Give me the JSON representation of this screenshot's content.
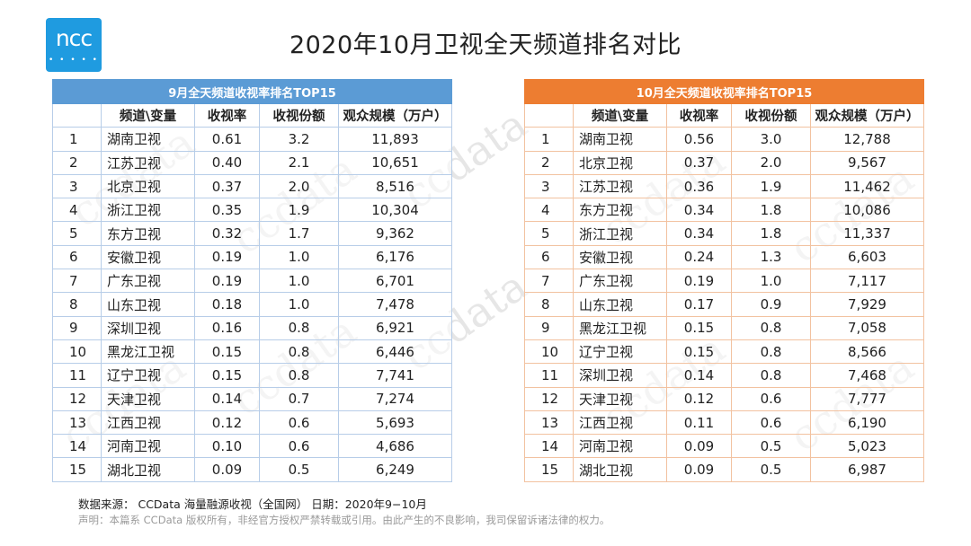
{
  "logo": {
    "text": "ncc",
    "dots": "• • • • •"
  },
  "title": "2020年10月卫视全天频道排名对比",
  "watermark": "ccdata",
  "colors": {
    "left_header": "#5b9bd5",
    "right_header": "#ed7d31",
    "logo": "#1f9be0"
  },
  "columns": [
    "频道\\变量",
    "收视率",
    "收视份额",
    "观众规模（万户）"
  ],
  "left_table": {
    "caption": "9月全天频道收视率排名TOP15",
    "rows": [
      {
        "rank": "1",
        "channel": "湖南卫视",
        "rating": "0.61",
        "share": "3.2",
        "audience": "11,893"
      },
      {
        "rank": "2",
        "channel": "江苏卫视",
        "rating": "0.40",
        "share": "2.1",
        "audience": "10,651"
      },
      {
        "rank": "3",
        "channel": "北京卫视",
        "rating": "0.37",
        "share": "2.0",
        "audience": "8,516"
      },
      {
        "rank": "4",
        "channel": "浙江卫视",
        "rating": "0.35",
        "share": "1.9",
        "audience": "10,304"
      },
      {
        "rank": "5",
        "channel": "东方卫视",
        "rating": "0.32",
        "share": "1.7",
        "audience": "9,362"
      },
      {
        "rank": "6",
        "channel": "安徽卫视",
        "rating": "0.19",
        "share": "1.0",
        "audience": "6,176"
      },
      {
        "rank": "7",
        "channel": "广东卫视",
        "rating": "0.19",
        "share": "1.0",
        "audience": "6,701"
      },
      {
        "rank": "8",
        "channel": "山东卫视",
        "rating": "0.18",
        "share": "1.0",
        "audience": "7,478"
      },
      {
        "rank": "9",
        "channel": "深圳卫视",
        "rating": "0.16",
        "share": "0.8",
        "audience": "6,921"
      },
      {
        "rank": "10",
        "channel": "黑龙江卫视",
        "rating": "0.15",
        "share": "0.8",
        "audience": "6,446"
      },
      {
        "rank": "11",
        "channel": "辽宁卫视",
        "rating": "0.15",
        "share": "0.8",
        "audience": "7,741"
      },
      {
        "rank": "12",
        "channel": "天津卫视",
        "rating": "0.14",
        "share": "0.7",
        "audience": "7,274"
      },
      {
        "rank": "13",
        "channel": "江西卫视",
        "rating": "0.12",
        "share": "0.6",
        "audience": "5,693"
      },
      {
        "rank": "14",
        "channel": "河南卫视",
        "rating": "0.10",
        "share": "0.6",
        "audience": "4,686"
      },
      {
        "rank": "15",
        "channel": "湖北卫视",
        "rating": "0.09",
        "share": "0.5",
        "audience": "6,249"
      }
    ]
  },
  "right_table": {
    "caption": "10月全天频道收视率排名TOP15",
    "rows": [
      {
        "rank": "1",
        "channel": "湖南卫视",
        "rating": "0.56",
        "share": "3.0",
        "audience": "12,788"
      },
      {
        "rank": "2",
        "channel": "北京卫视",
        "rating": "0.37",
        "share": "2.0",
        "audience": "9,567"
      },
      {
        "rank": "3",
        "channel": "江苏卫视",
        "rating": "0.36",
        "share": "1.9",
        "audience": "11,462"
      },
      {
        "rank": "4",
        "channel": "东方卫视",
        "rating": "0.34",
        "share": "1.8",
        "audience": "10,086"
      },
      {
        "rank": "5",
        "channel": "浙江卫视",
        "rating": "0.34",
        "share": "1.8",
        "audience": "11,337"
      },
      {
        "rank": "6",
        "channel": "安徽卫视",
        "rating": "0.24",
        "share": "1.3",
        "audience": "6,603"
      },
      {
        "rank": "7",
        "channel": "广东卫视",
        "rating": "0.19",
        "share": "1.0",
        "audience": "7,117"
      },
      {
        "rank": "8",
        "channel": "山东卫视",
        "rating": "0.17",
        "share": "0.9",
        "audience": "7,929"
      },
      {
        "rank": "9",
        "channel": "黑龙江卫视",
        "rating": "0.15",
        "share": "0.8",
        "audience": "7,058"
      },
      {
        "rank": "10",
        "channel": "辽宁卫视",
        "rating": "0.15",
        "share": "0.8",
        "audience": "8,566"
      },
      {
        "rank": "11",
        "channel": "深圳卫视",
        "rating": "0.14",
        "share": "0.8",
        "audience": "7,468"
      },
      {
        "rank": "12",
        "channel": "天津卫视",
        "rating": "0.12",
        "share": "0.6",
        "audience": "7,777"
      },
      {
        "rank": "13",
        "channel": "江西卫视",
        "rating": "0.11",
        "share": "0.6",
        "audience": "6,190"
      },
      {
        "rank": "14",
        "channel": "河南卫视",
        "rating": "0.09",
        "share": "0.5",
        "audience": "5,023"
      },
      {
        "rank": "15",
        "channel": "湖北卫视",
        "rating": "0.09",
        "share": "0.5",
        "audience": "6,987"
      }
    ]
  },
  "footer": {
    "source": "数据来源： CCData 海量融源收视（全国网）  日期：2020年9−10月",
    "declaration": "声明：本篇系 CCData 版权所有，非经官方授权严禁转载或引用。由此产生的不良影响，我司保留诉诸法律的权力。"
  }
}
